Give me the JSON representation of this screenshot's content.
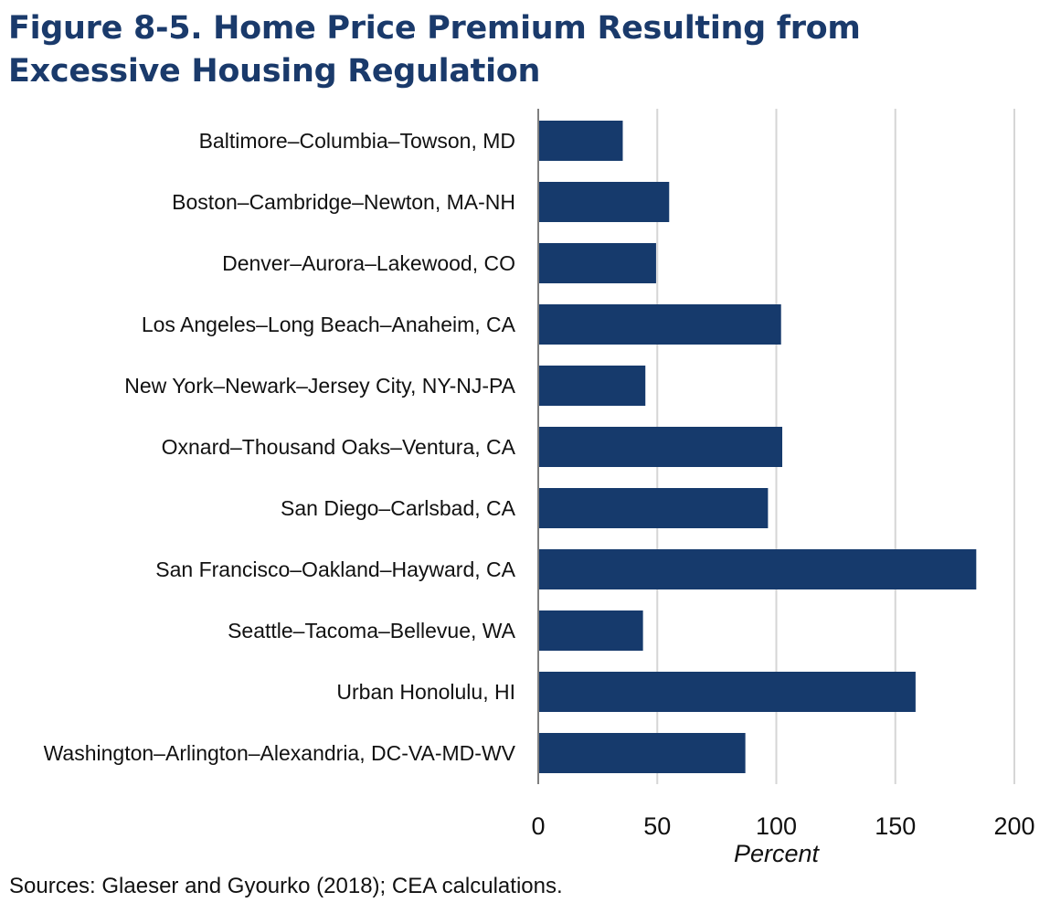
{
  "title": "Figure 8-5. Home Price Premium Resulting from Excessive Housing Regulation",
  "source": "Sources: Glaeser and Gyourko (2018); CEA calculations.",
  "chart_data": {
    "type": "bar",
    "orientation": "horizontal",
    "categories": [
      "Baltimore–Columbia–Towson, MD",
      "Boston–Cambridge–Newton, MA-NH",
      "Denver–Aurora–Lakewood, CO",
      "Los Angeles–Long Beach–Anaheim, CA",
      "New York–Newark–Jersey City, NY-NJ-PA",
      "Oxnard–Thousand Oaks–Ventura, CA",
      "San Diego–Carlsbad, CA",
      "San Francisco–Oakland–Hayward, CA",
      "Seattle–Tacoma–Bellevue, WA",
      "Urban Honolulu, HI",
      "Washington–Arlington–Alexandria, DC-VA-MD-WV"
    ],
    "values": [
      35.5,
      55,
      49.5,
      102,
      45,
      102.5,
      96.5,
      184,
      44,
      158.5,
      87
    ],
    "xlabel": "Percent",
    "ylabel": "",
    "xlim": [
      0,
      200
    ],
    "xticks": [
      0,
      50,
      100,
      150,
      200
    ],
    "grid": "vertical",
    "bar_color": "#163a6c",
    "grid_color": "#d6d6d6",
    "axis_color": "#7f7f7f",
    "title_color": "#1a3a6b"
  }
}
